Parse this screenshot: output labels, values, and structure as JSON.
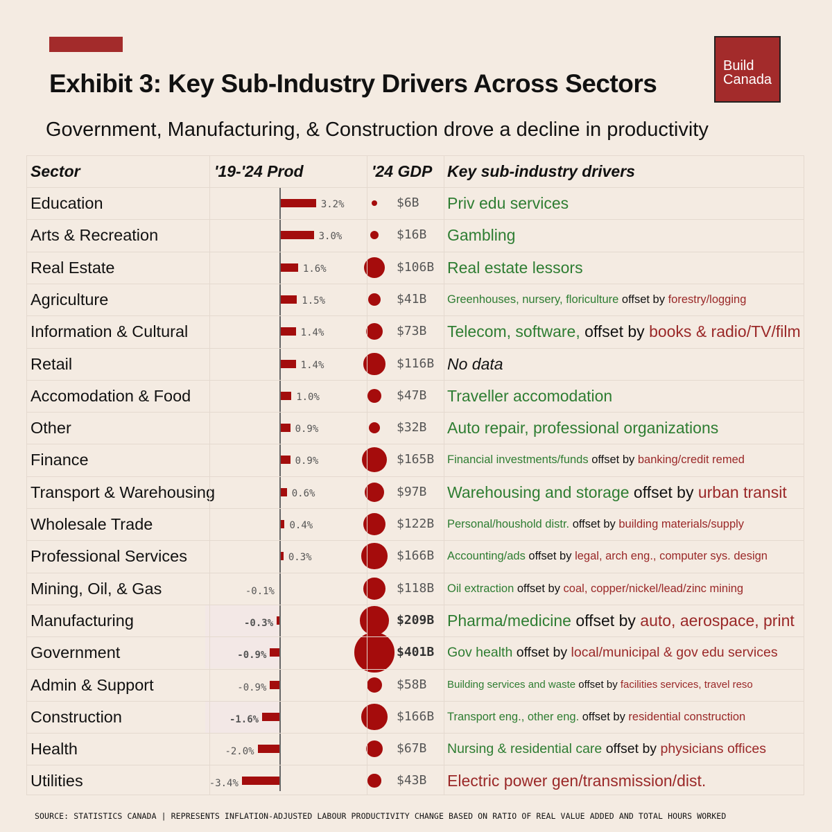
{
  "header": {
    "title": "Exhibit 3: Key Sub-Industry Drivers Across Sectors",
    "subtitle": "Government, Manufacturing, & Construction drove a decline in productivity",
    "logo_line1": "Build",
    "logo_line2": "Canada"
  },
  "colors": {
    "accent": "#a32b2b",
    "bar": "#a30d0d",
    "positive_text": "#2e7d32",
    "negative_text": "#9a2828",
    "background": "#f4ebe2"
  },
  "chart_data": {
    "type": "table",
    "title": "Exhibit 3: Key Sub-Industry Drivers Across Sectors",
    "columns": [
      "Sector",
      "'19-'24 Prod",
      "'24 GDP",
      "Key sub-industry drivers"
    ],
    "rows": [
      {
        "sector": "Education",
        "prod": 3.2,
        "prod_label": "3.2%",
        "gdp": 6,
        "gdp_label": "$6B",
        "drivers": [
          {
            "t": "Priv edu services",
            "c": "g"
          }
        ],
        "size": "big"
      },
      {
        "sector": "Arts & Recreation",
        "prod": 3.0,
        "prod_label": "3.0%",
        "gdp": 16,
        "gdp_label": "$16B",
        "drivers": [
          {
            "t": "Gambling",
            "c": "g"
          }
        ],
        "size": "big"
      },
      {
        "sector": "Real Estate",
        "prod": 1.6,
        "prod_label": "1.6%",
        "gdp": 106,
        "gdp_label": "$106B",
        "drivers": [
          {
            "t": "Real estate lessors",
            "c": "g"
          }
        ],
        "size": "big"
      },
      {
        "sector": "Agriculture",
        "prod": 1.5,
        "prod_label": "1.5%",
        "gdp": 41,
        "gdp_label": "$41B",
        "drivers": [
          {
            "t": "Greenhouses, nursery, floriculture",
            "c": "g"
          },
          {
            "t": " offset by ",
            "c": "k"
          },
          {
            "t": "forestry/logging",
            "c": "r"
          }
        ],
        "size": "small"
      },
      {
        "sector": "Information & Cultural",
        "prod": 1.4,
        "prod_label": "1.4%",
        "gdp": 73,
        "gdp_label": "$73B",
        "drivers": [
          {
            "t": "Telecom, software,",
            "c": "g"
          },
          {
            "t": " offset by ",
            "c": "k"
          },
          {
            "t": "books & radio/TV/film",
            "c": "r"
          }
        ],
        "size": "big"
      },
      {
        "sector": "Retail",
        "prod": 1.4,
        "prod_label": "1.4%",
        "gdp": 116,
        "gdp_label": "$116B",
        "drivers": [
          {
            "t": "No data",
            "c": "ki"
          }
        ],
        "size": "big"
      },
      {
        "sector": "Accomodation & Food",
        "prod": 1.0,
        "prod_label": "1.0%",
        "gdp": 47,
        "gdp_label": "$47B",
        "drivers": [
          {
            "t": "Traveller accomodation",
            "c": "g"
          }
        ],
        "size": "big"
      },
      {
        "sector": "Other",
        "prod": 0.9,
        "prod_label": "0.9%",
        "gdp": 32,
        "gdp_label": "$32B",
        "drivers": [
          {
            "t": "Auto repair, professional organizations",
            "c": "g"
          }
        ],
        "size": "big"
      },
      {
        "sector": "Finance",
        "prod": 0.9,
        "prod_label": "0.9%",
        "gdp": 165,
        "gdp_label": "$165B",
        "drivers": [
          {
            "t": "Financial investments/funds",
            "c": "g"
          },
          {
            "t": " offset by ",
            "c": "k"
          },
          {
            "t": "banking/credit remed",
            "c": "r"
          }
        ],
        "size": "small"
      },
      {
        "sector": "Transport & Warehousing",
        "prod": 0.6,
        "prod_label": "0.6%",
        "gdp": 97,
        "gdp_label": "$97B",
        "drivers": [
          {
            "t": "Warehousing and storage",
            "c": "g"
          },
          {
            "t": " offset by ",
            "c": "k"
          },
          {
            "t": "urban transit",
            "c": "r"
          }
        ],
        "size": "big"
      },
      {
        "sector": "Wholesale Trade",
        "prod": 0.4,
        "prod_label": "0.4%",
        "gdp": 122,
        "gdp_label": "$122B",
        "drivers": [
          {
            "t": "Personal/houshold distr.",
            "c": "g"
          },
          {
            "t": " offset by ",
            "c": "k"
          },
          {
            "t": "building materials/supply",
            "c": "r"
          }
        ],
        "size": "small"
      },
      {
        "sector": "Professional Services",
        "prod": 0.3,
        "prod_label": "0.3%",
        "gdp": 166,
        "gdp_label": "$166B",
        "drivers": [
          {
            "t": "Accounting/ads",
            "c": "g"
          },
          {
            "t": " offset by ",
            "c": "k"
          },
          {
            "t": "legal, arch eng., computer sys. design",
            "c": "r"
          }
        ],
        "size": "small"
      },
      {
        "sector": "Mining, Oil, & Gas",
        "prod": -0.1,
        "prod_label": "-0.1%",
        "gdp": 118,
        "gdp_label": "$118B",
        "drivers": [
          {
            "t": "Oil extraction",
            "c": "g"
          },
          {
            "t": " offset by ",
            "c": "k"
          },
          {
            "t": "coal, copper/nickel/lead/zinc mining",
            "c": "r"
          }
        ],
        "size": "small"
      },
      {
        "sector": "Manufacturing",
        "prod": -0.3,
        "prod_label": "-0.3%",
        "gdp": 209,
        "gdp_label": "$209B",
        "drivers": [
          {
            "t": "Pharma/medicine",
            "c": "g"
          },
          {
            "t": " offset by ",
            "c": "k"
          },
          {
            "t": "auto, aerospace, print",
            "c": "r"
          }
        ],
        "size": "big",
        "highlight": true
      },
      {
        "sector": "Government",
        "prod": -0.9,
        "prod_label": "-0.9%",
        "gdp": 401,
        "gdp_label": "$401B",
        "drivers": [
          {
            "t": "Gov health",
            "c": "g"
          },
          {
            "t": " offset by ",
            "c": "k"
          },
          {
            "t": "local/municipal & gov edu services",
            "c": "r"
          }
        ],
        "size": "mid",
        "highlight": true
      },
      {
        "sector": "Admin & Support",
        "prod": -0.9,
        "prod_label": "-0.9%",
        "gdp": 58,
        "gdp_label": "$58B",
        "drivers": [
          {
            "t": "Building services and waste",
            "c": "g"
          },
          {
            "t": " offset by ",
            "c": "k"
          },
          {
            "t": "facilities services, travel reso",
            "c": "r"
          }
        ],
        "size": "xsmall"
      },
      {
        "sector": "Construction",
        "prod": -1.6,
        "prod_label": "-1.6%",
        "gdp": 166,
        "gdp_label": "$166B",
        "drivers": [
          {
            "t": "Transport eng., other eng.",
            "c": "g"
          },
          {
            "t": " offset by ",
            "c": "k"
          },
          {
            "t": "residential construction",
            "c": "r"
          }
        ],
        "size": "small",
        "highlight": true
      },
      {
        "sector": "Health",
        "prod": -2.0,
        "prod_label": "-2.0%",
        "gdp": 67,
        "gdp_label": "$67B",
        "drivers": [
          {
            "t": "Nursing & residential care",
            "c": "g"
          },
          {
            "t": " offset by ",
            "c": "k"
          },
          {
            "t": "physicians offices",
            "c": "r"
          }
        ],
        "size": "mid"
      },
      {
        "sector": "Utilities",
        "prod": -3.4,
        "prod_label": "-3.4%",
        "gdp": 43,
        "gdp_label": "$43B",
        "drivers": [
          {
            "t": "Electric power gen/transmission/dist.",
            "c": "r"
          }
        ],
        "size": "big"
      }
    ]
  },
  "footer": {
    "source": "SOURCE: STATISTICS CANADA | REPRESENTS INFLATION-ADJUSTED LABOUR PRODUCTIVITY CHANGE BASED ON RATIO OF REAL VALUE ADDED AND TOTAL HOURS WORKED"
  }
}
